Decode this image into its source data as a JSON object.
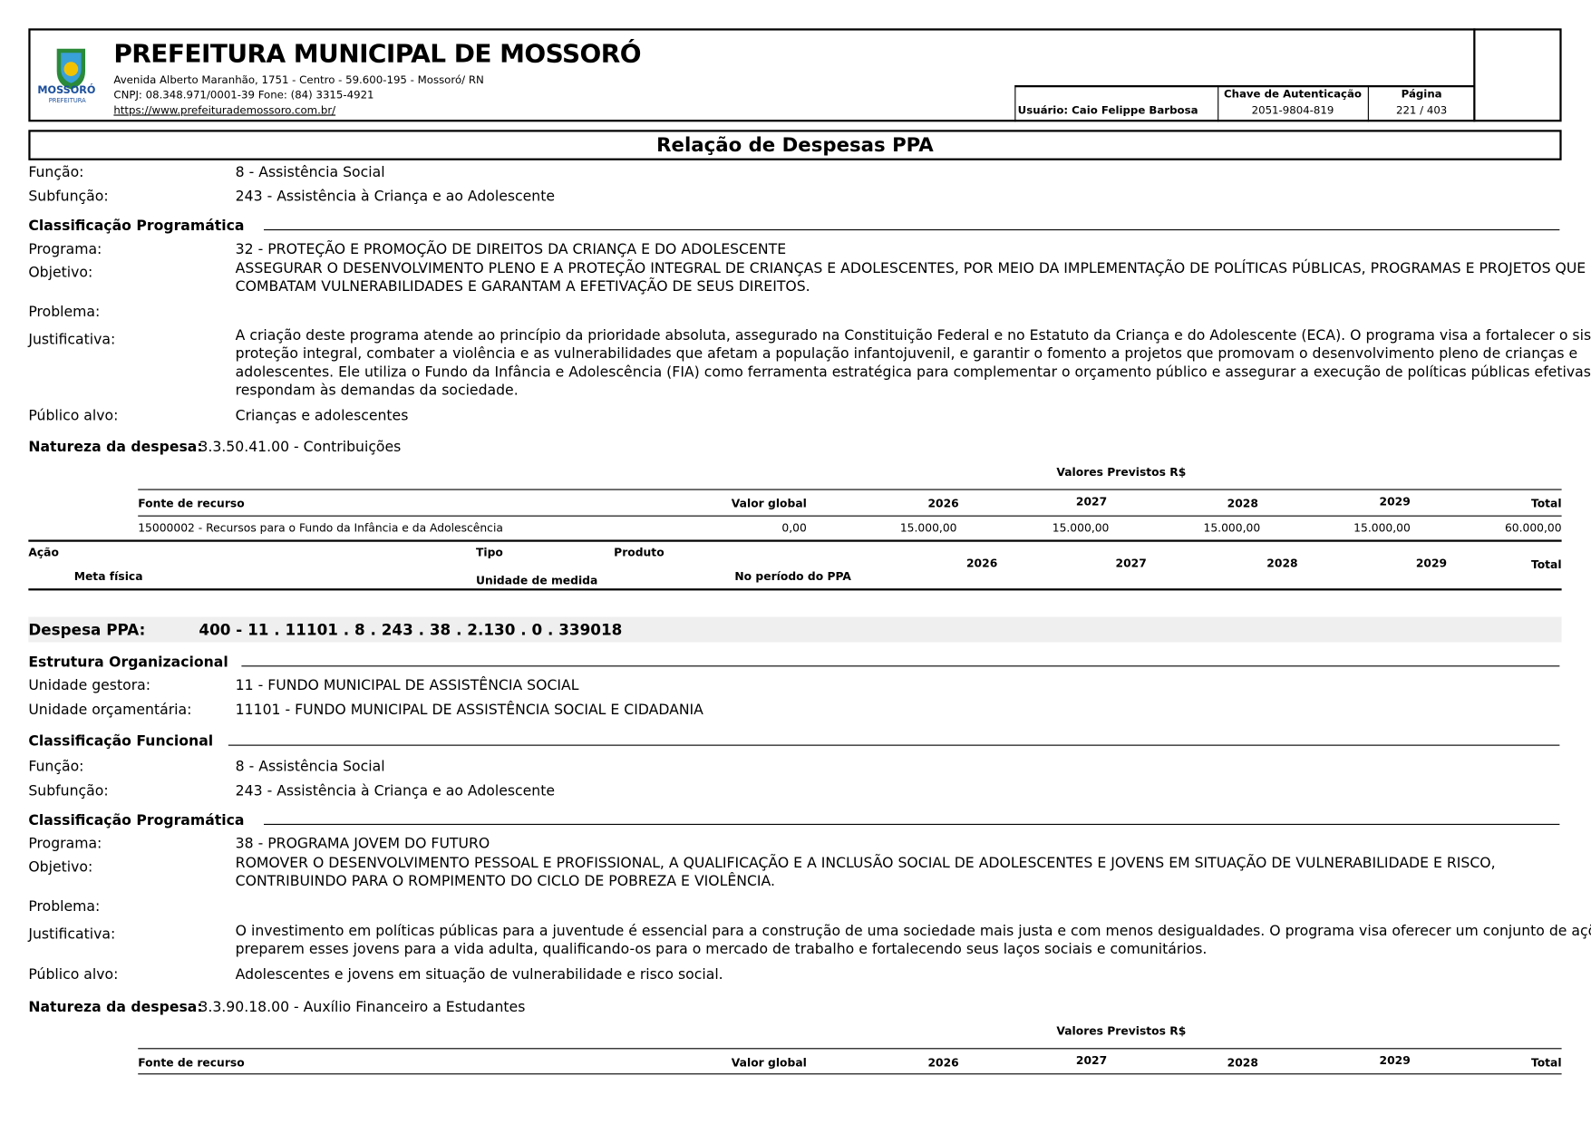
{
  "header": {
    "title": "PREFEITURA MUNICIPAL DE MOSSORÓ",
    "address": "Avenida Alberto Maranhão, 1751 - Centro - 59.600-195 - Mossoró/ RN",
    "cnpj": "CNPJ: 08.348.971/0001-39 Fone: (84) 3315-4921",
    "url": "https://www.prefeiturademossoro.com.br/",
    "logo_text": "MOSSORÓ",
    "logo_sub": "PREFEITURA",
    "user": "Usuário: Caio Felippe Barbosa",
    "auth_label": "Chave de Autenticação",
    "auth_value": "2051-9804-819",
    "page_label": "Página",
    "page_value": "221 / 403"
  },
  "report_title": "Relação de Despesas PPA",
  "block1": {
    "funcao_label": "Função:",
    "funcao": "8 - Assistência Social",
    "subfuncao_label": "Subfunção:",
    "subfuncao": "243 - Assistência à Criança e ao Adolescente",
    "class_prog": "Classificação Programática",
    "programa_label": "Programa:",
    "programa": "32 - PROTEÇÃO E PROMOÇÃO DE DIREITOS DA CRIANÇA E DO ADOLESCENTE",
    "objetivo_label": "Objetivo:",
    "objetivo": [
      "ASSEGURAR O DESENVOLVIMENTO PLENO E A PROTEÇÃO INTEGRAL DE CRIANÇAS E ADOLESCENTES, POR MEIO DA IMPLEMENTAÇÃO DE POLÍTICAS PÚBLICAS, PROGRAMAS E PROJETOS QUE",
      "COMBATAM VULNERABILIDADES E GARANTAM A EFETIVAÇÃO DE SEUS DIREITOS."
    ],
    "problema_label": "Problema:",
    "justificativa_label": "Justificativa:",
    "justificativa": [
      "A criação deste programa atende ao princípio da prioridade absoluta, assegurado na Constituição Federal e no Estatuto da Criança e do Adolescente (ECA). O programa visa a fortalecer o sistema de",
      "proteção integral, combater a violência e as vulnerabilidades que afetam a população infantojuvenil, e garantir o fomento a projetos que promovam o desenvolvimento pleno de crianças e",
      "adolescentes. Ele utiliza o Fundo da Infância e Adolescência (FIA) como ferramenta estratégica para complementar o orçamento público e assegurar a execução de políticas públicas efetivas e que",
      "respondam às demandas da sociedade."
    ],
    "publico_label": "Público alvo:",
    "publico": "Crianças e adolescentes",
    "natureza_label": "Natureza da despesa:",
    "natureza": "3.3.50.41.00 - Contribuições"
  },
  "table": {
    "valores_label": "Valores Previstos R$",
    "cols": [
      "Fonte de recurso",
      "Valor global",
      "2026",
      "2027",
      "2028",
      "2029",
      "Total"
    ],
    "row": [
      "15000002 - Recursos para o Fundo da Infância e da Adolescência",
      "0,00",
      "15.000,00",
      "15.000,00",
      "15.000,00",
      "15.000,00",
      "60.000,00"
    ]
  },
  "acao_table": {
    "acao": "Ação",
    "tipo": "Tipo",
    "produto": "Produto",
    "meta": "Meta física",
    "unidade": "Unidade de medida",
    "periodo": "No período do PPA",
    "years": [
      "2026",
      "2027",
      "2028",
      "2029",
      "Total"
    ]
  },
  "despesa": {
    "label": "Despesa PPA:",
    "code": "400 - 11 . 11101 . 8 . 243 . 38 . 2.130 . 0 . 339018"
  },
  "block2": {
    "estrutura": "Estrutura Organizacional",
    "gestora_label": "Unidade gestora:",
    "gestora": "11 - FUNDO MUNICIPAL DE ASSISTÊNCIA SOCIAL",
    "orc_label": "Unidade orçamentária:",
    "orc": "11101 - FUNDO MUNICIPAL DE ASSISTÊNCIA SOCIAL E CIDADANIA",
    "class_func": "Classificação Funcional",
    "funcao_label": "Função:",
    "funcao": "8 - Assistência Social",
    "subfuncao_label": "Subfunção:",
    "subfuncao": "243 - Assistência à Criança e ao Adolescente",
    "class_prog": "Classificação Programática",
    "programa_label": "Programa:",
    "programa": "38 - PROGRAMA JOVEM DO FUTURO",
    "objetivo_label": "Objetivo:",
    "objetivo": [
      "ROMOVER O DESENVOLVIMENTO PESSOAL E PROFISSIONAL, A QUALIFICAÇÃO E A INCLUSÃO SOCIAL DE ADOLESCENTES E JOVENS EM SITUAÇÃO DE VULNERABILIDADE E RISCO,",
      "CONTRIBUINDO PARA O ROMPIMENTO DO CICLO DE POBREZA E VIOLÊNCIA."
    ],
    "problema_label": "Problema:",
    "justificativa_label": "Justificativa:",
    "justificativa": [
      "O investimento em políticas públicas para a juventude é essencial para a construção de uma sociedade mais justa e com menos desigualdades. O programa visa oferecer um conjunto de ações que",
      "preparem esses jovens para a vida adulta, qualificando-os para o mercado de trabalho e fortalecendo seus laços sociais e comunitários."
    ],
    "publico_label": "Público alvo:",
    "publico": "Adolescentes e jovens em situação de vulnerabilidade e risco social.",
    "natureza_label": "Natureza da despesa:",
    "natureza": "3.3.90.18.00 - Auxílio Financeiro a Estudantes"
  }
}
